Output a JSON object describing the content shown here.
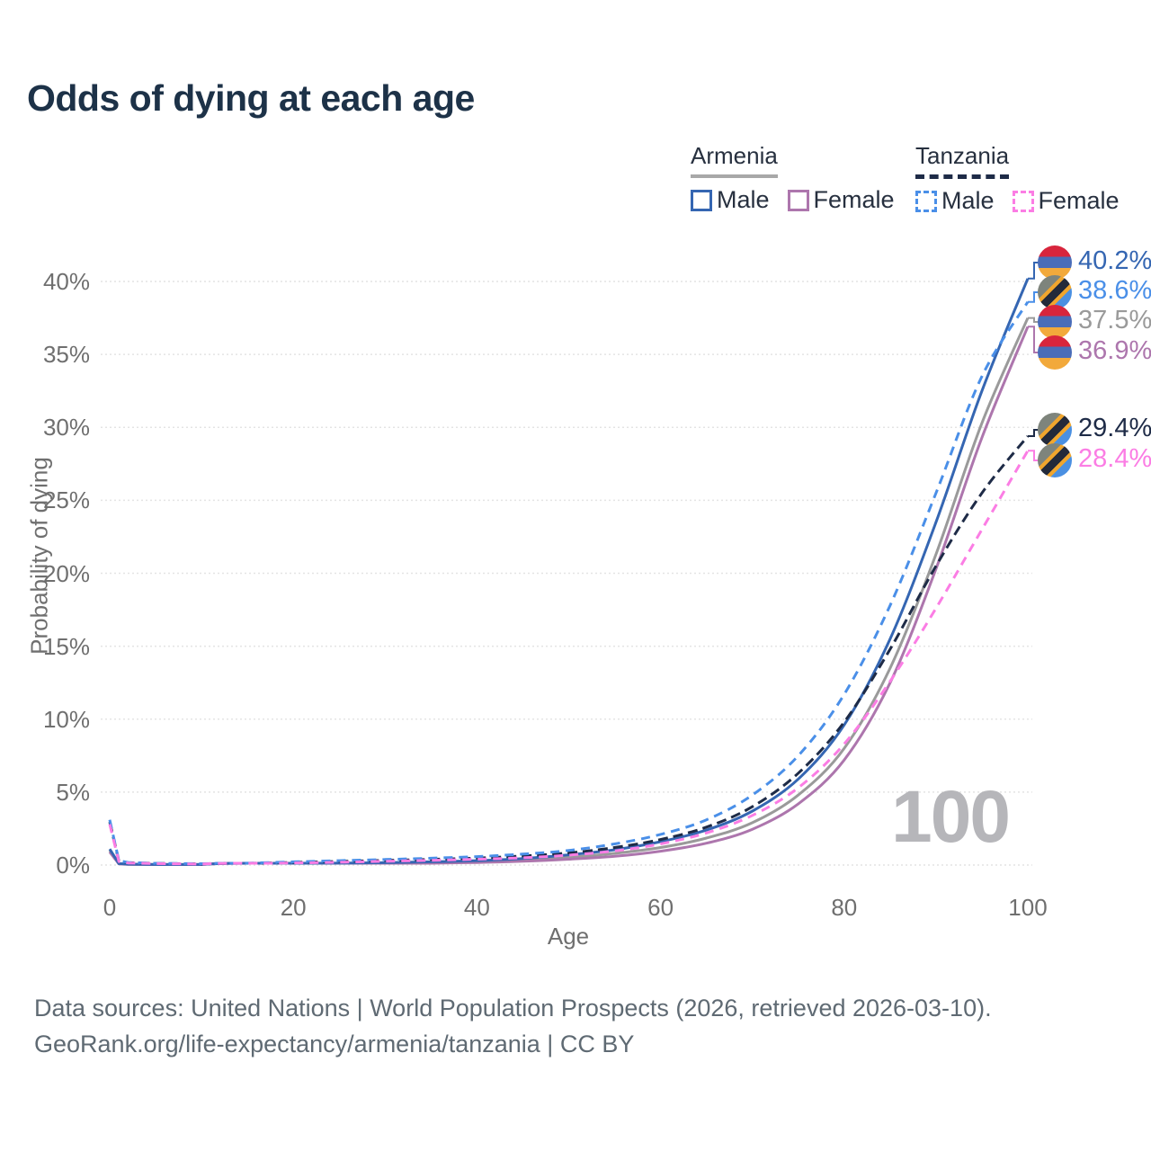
{
  "title": "Odds of dying at each age",
  "watermark_age": "100",
  "colors": {
    "title_text": "#1d3248",
    "axis_text": "#6f6f6f",
    "grid": "#e4e4e4",
    "legend_text": "#27303f",
    "armenia_underline": "#a8a8a8",
    "tanzania_underline": "#1e2b47",
    "footer_text": "#5f6a73",
    "watermark": "#b6b6ba"
  },
  "legend": {
    "groups": [
      {
        "label": "Armenia",
        "underline_style": "solid",
        "underline_color": "#a8a8a8",
        "items": [
          {
            "label": "Male",
            "color": "#3566b2",
            "style": "solid"
          },
          {
            "label": "Female",
            "color": "#ad76ad",
            "style": "solid"
          }
        ]
      },
      {
        "label": "Tanzania",
        "underline_style": "dashed",
        "underline_color": "#1e2b47",
        "items": [
          {
            "label": "Male",
            "color": "#4a8fe8",
            "style": "dashed"
          },
          {
            "label": "Female",
            "color": "#fb7de4",
            "style": "dashed"
          }
        ]
      }
    ]
  },
  "axes": {
    "y_label": "Probability of dying",
    "x_label": "Age",
    "y_ticks": [
      "0%",
      "5%",
      "10%",
      "15%",
      "20%",
      "25%",
      "30%",
      "35%",
      "40%"
    ],
    "y_tick_values": [
      0,
      5,
      10,
      15,
      20,
      25,
      30,
      35,
      40
    ],
    "x_ticks": [
      "0",
      "20",
      "40",
      "60",
      "80",
      "100"
    ],
    "x_tick_values": [
      0,
      20,
      40,
      60,
      80,
      100
    ]
  },
  "footer": {
    "line1": "Data sources: United Nations | World Population Prospects (2026, retrieved 2026-03-10).",
    "line2": "GeoRank.org/life-expectancy/armenia/tanzania | CC BY"
  },
  "chart_data": {
    "type": "line",
    "title": "Odds of dying at each age",
    "xlabel": "Age",
    "ylabel": "Probability of dying",
    "unit": "%",
    "xlim": [
      0,
      100
    ],
    "ylim": [
      0,
      42
    ],
    "grid": "horizontal",
    "legend_position": "top-right",
    "series": [
      {
        "name": "Armenia Male",
        "country": "Armenia",
        "group": "Male",
        "flag": "armenia",
        "color": "#3566b2",
        "dash": "none",
        "end_value": 40.2,
        "end_label": "40.2%",
        "points": [
          [
            0,
            1.1
          ],
          [
            1,
            0.1
          ],
          [
            2,
            0.06
          ],
          [
            5,
            0.04
          ],
          [
            10,
            0.04
          ],
          [
            15,
            0.07
          ],
          [
            20,
            0.11
          ],
          [
            25,
            0.13
          ],
          [
            30,
            0.16
          ],
          [
            35,
            0.22
          ],
          [
            40,
            0.3
          ],
          [
            45,
            0.45
          ],
          [
            50,
            0.7
          ],
          [
            55,
            1.05
          ],
          [
            60,
            1.6
          ],
          [
            65,
            2.4
          ],
          [
            70,
            3.7
          ],
          [
            75,
            5.9
          ],
          [
            80,
            9.6
          ],
          [
            85,
            15.5
          ],
          [
            90,
            23.5
          ],
          [
            95,
            32.5
          ],
          [
            100,
            40.2
          ]
        ]
      },
      {
        "name": "Tanzania Male",
        "country": "Tanzania",
        "group": "Male",
        "flag": "tanzania",
        "color": "#4a8fe8",
        "dash": "10 7",
        "end_value": 38.6,
        "end_label": "38.6%",
        "points": [
          [
            0,
            3.1
          ],
          [
            1,
            0.3
          ],
          [
            2,
            0.18
          ],
          [
            5,
            0.12
          ],
          [
            10,
            0.09
          ],
          [
            15,
            0.13
          ],
          [
            20,
            0.22
          ],
          [
            25,
            0.3
          ],
          [
            30,
            0.38
          ],
          [
            35,
            0.47
          ],
          [
            40,
            0.58
          ],
          [
            45,
            0.75
          ],
          [
            50,
            1.0
          ],
          [
            55,
            1.45
          ],
          [
            60,
            2.1
          ],
          [
            65,
            3.1
          ],
          [
            70,
            4.8
          ],
          [
            75,
            7.5
          ],
          [
            80,
            11.7
          ],
          [
            85,
            17.8
          ],
          [
            90,
            25.5
          ],
          [
            95,
            33.5
          ],
          [
            100,
            38.6
          ]
        ]
      },
      {
        "name": "Armenia (both sexes)",
        "country": "Armenia",
        "group": "All",
        "flag": "armenia",
        "color": "#9a9a9a",
        "dash": "none",
        "end_value": 37.5,
        "end_label": "37.5%",
        "points": [
          [
            0,
            1.0
          ],
          [
            1,
            0.09
          ],
          [
            2,
            0.05
          ],
          [
            5,
            0.04
          ],
          [
            10,
            0.04
          ],
          [
            15,
            0.06
          ],
          [
            20,
            0.09
          ],
          [
            25,
            0.11
          ],
          [
            30,
            0.13
          ],
          [
            35,
            0.18
          ],
          [
            40,
            0.24
          ],
          [
            45,
            0.35
          ],
          [
            50,
            0.53
          ],
          [
            55,
            0.8
          ],
          [
            60,
            1.2
          ],
          [
            65,
            1.85
          ],
          [
            70,
            2.9
          ],
          [
            75,
            4.8
          ],
          [
            80,
            8.0
          ],
          [
            85,
            13.5
          ],
          [
            90,
            21.3
          ],
          [
            95,
            30.3
          ],
          [
            100,
            37.5
          ]
        ]
      },
      {
        "name": "Armenia Female",
        "country": "Armenia",
        "group": "Female",
        "flag": "armenia",
        "color": "#ad76ad",
        "dash": "none",
        "end_value": 36.9,
        "end_label": "36.9%",
        "points": [
          [
            0,
            0.9
          ],
          [
            1,
            0.08
          ],
          [
            2,
            0.05
          ],
          [
            5,
            0.03
          ],
          [
            10,
            0.03
          ],
          [
            15,
            0.05
          ],
          [
            20,
            0.06
          ],
          [
            25,
            0.07
          ],
          [
            30,
            0.09
          ],
          [
            35,
            0.12
          ],
          [
            40,
            0.17
          ],
          [
            45,
            0.26
          ],
          [
            50,
            0.4
          ],
          [
            55,
            0.6
          ],
          [
            60,
            0.95
          ],
          [
            65,
            1.5
          ],
          [
            70,
            2.45
          ],
          [
            75,
            4.2
          ],
          [
            80,
            7.2
          ],
          [
            85,
            12.5
          ],
          [
            90,
            20.3
          ],
          [
            95,
            29.3
          ],
          [
            100,
            36.9
          ]
        ]
      },
      {
        "name": "Tanzania (both sexes)",
        "country": "Tanzania",
        "group": "All",
        "flag": "tanzania",
        "color": "#1e2b47",
        "dash": "11 6",
        "end_value": 29.4,
        "end_label": "29.4%",
        "points": [
          [
            0,
            2.95
          ],
          [
            1,
            0.27
          ],
          [
            2,
            0.16
          ],
          [
            5,
            0.11
          ],
          [
            10,
            0.08
          ],
          [
            15,
            0.11
          ],
          [
            20,
            0.18
          ],
          [
            25,
            0.25
          ],
          [
            30,
            0.32
          ],
          [
            35,
            0.39
          ],
          [
            40,
            0.48
          ],
          [
            45,
            0.62
          ],
          [
            50,
            0.83
          ],
          [
            55,
            1.2
          ],
          [
            60,
            1.75
          ],
          [
            65,
            2.6
          ],
          [
            70,
            4.0
          ],
          [
            75,
            6.3
          ],
          [
            80,
            9.8
          ],
          [
            85,
            14.8
          ],
          [
            90,
            20.5
          ],
          [
            95,
            25.5
          ],
          [
            100,
            29.4
          ]
        ]
      },
      {
        "name": "Tanzania Female",
        "country": "Tanzania",
        "group": "Female",
        "flag": "tanzania",
        "color": "#fb7de4",
        "dash": "10 7",
        "end_value": 28.4,
        "end_label": "28.4%",
        "points": [
          [
            0,
            2.8
          ],
          [
            1,
            0.24
          ],
          [
            2,
            0.14
          ],
          [
            5,
            0.1
          ],
          [
            10,
            0.07
          ],
          [
            15,
            0.09
          ],
          [
            20,
            0.14
          ],
          [
            25,
            0.19
          ],
          [
            30,
            0.26
          ],
          [
            35,
            0.32
          ],
          [
            40,
            0.4
          ],
          [
            45,
            0.5
          ],
          [
            50,
            0.68
          ],
          [
            55,
            0.97
          ],
          [
            60,
            1.45
          ],
          [
            65,
            2.2
          ],
          [
            70,
            3.4
          ],
          [
            75,
            5.3
          ],
          [
            80,
            8.3
          ],
          [
            85,
            12.6
          ],
          [
            90,
            17.6
          ],
          [
            95,
            23.0
          ],
          [
            100,
            28.4
          ]
        ]
      }
    ]
  }
}
